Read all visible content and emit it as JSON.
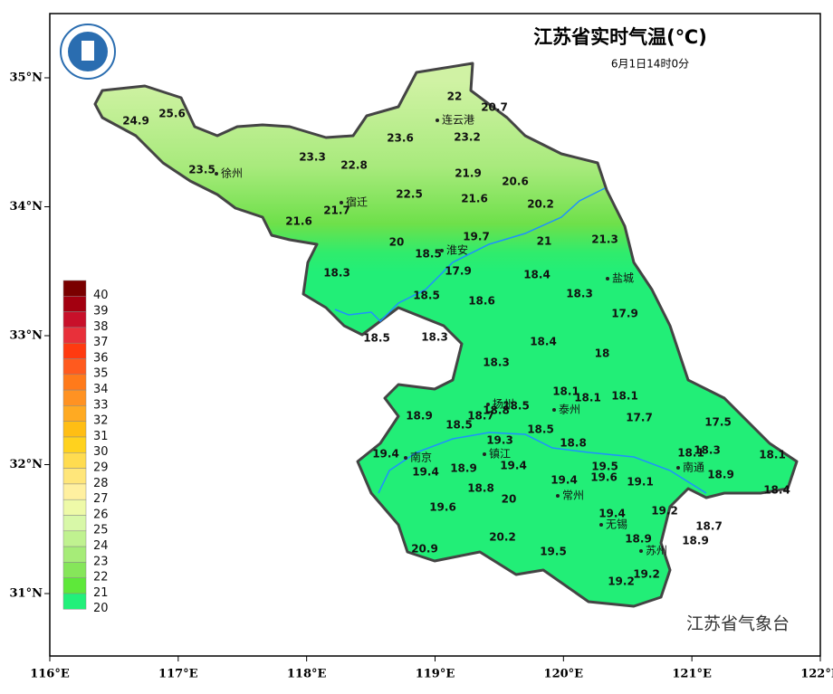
{
  "map": {
    "title": "江苏省实时气温(℃)",
    "subtitle": "6月1日14时0分",
    "credit": "江苏省气象台",
    "xticks": [
      {
        "value": 116,
        "label": "116°E"
      },
      {
        "value": 117,
        "label": "117°E"
      },
      {
        "value": 118,
        "label": "118°E"
      },
      {
        "value": 119,
        "label": "119°E"
      },
      {
        "value": 120,
        "label": "120°E"
      },
      {
        "value": 121,
        "label": "121°E"
      },
      {
        "value": 122,
        "label": "122°E"
      }
    ],
    "yticks": [
      {
        "value": 35,
        "label": "35°N"
      },
      {
        "value": 34,
        "label": "34°N"
      },
      {
        "value": 33,
        "label": "33°N"
      },
      {
        "value": 32,
        "label": "32°N"
      },
      {
        "value": 31,
        "label": "31°N"
      }
    ],
    "legend": {
      "values": [
        40,
        39,
        38,
        37,
        36,
        35,
        34,
        33,
        32,
        31,
        30,
        29,
        28,
        27,
        26,
        25,
        24,
        23,
        22,
        21,
        20
      ],
      "colors": [
        "#7a0000",
        "#a30010",
        "#c8102a",
        "#e8303a",
        "#ff3a10",
        "#ff5a1e",
        "#ff7a1a",
        "#ff9222",
        "#ffaa22",
        "#ffbe14",
        "#ffd21e",
        "#ffdc50",
        "#ffe67a",
        "#fff0a0",
        "#eefaa8",
        "#d8f8a8",
        "#c0f290",
        "#a6ec78",
        "#86e65a",
        "#5ee83a",
        "#22f07a"
      ]
    },
    "cities": [
      "连云港",
      "徐州",
      "宿迁",
      "淮安",
      "盐城",
      "扬州",
      "泰州",
      "南京",
      "镇江",
      "南通",
      "常州",
      "无锡",
      "苏州"
    ],
    "stations": [
      22.0,
      20.7,
      24.9,
      25.6,
      23.6,
      23.2,
      23.3,
      22.8,
      23.5,
      21.9,
      20.6,
      22.5,
      21.6,
      20.2,
      21.7,
      21.6,
      19.7,
      20.0,
      21.0,
      21.3,
      18.5,
      18.3,
      17.9,
      18.4,
      18.5,
      18.6,
      18.3,
      17.9,
      18.5,
      18.3,
      18.4,
      18.0,
      18.3,
      18.1,
      18.1,
      18.1,
      18.8,
      18.5,
      18.7,
      18.9,
      18.5,
      17.7,
      17.5,
      18.5,
      19.3,
      18.8,
      19.4,
      18.1,
      18.3,
      18.1,
      19.4,
      18.9,
      19.4,
      19.5,
      19.6,
      19.4,
      19.1,
      18.9,
      18.8,
      20.0,
      18.4,
      19.6,
      19.4,
      19.2,
      18.7,
      20.2,
      18.9,
      18.9,
      20.9,
      19.5,
      19.2,
      19.2
    ]
  }
}
